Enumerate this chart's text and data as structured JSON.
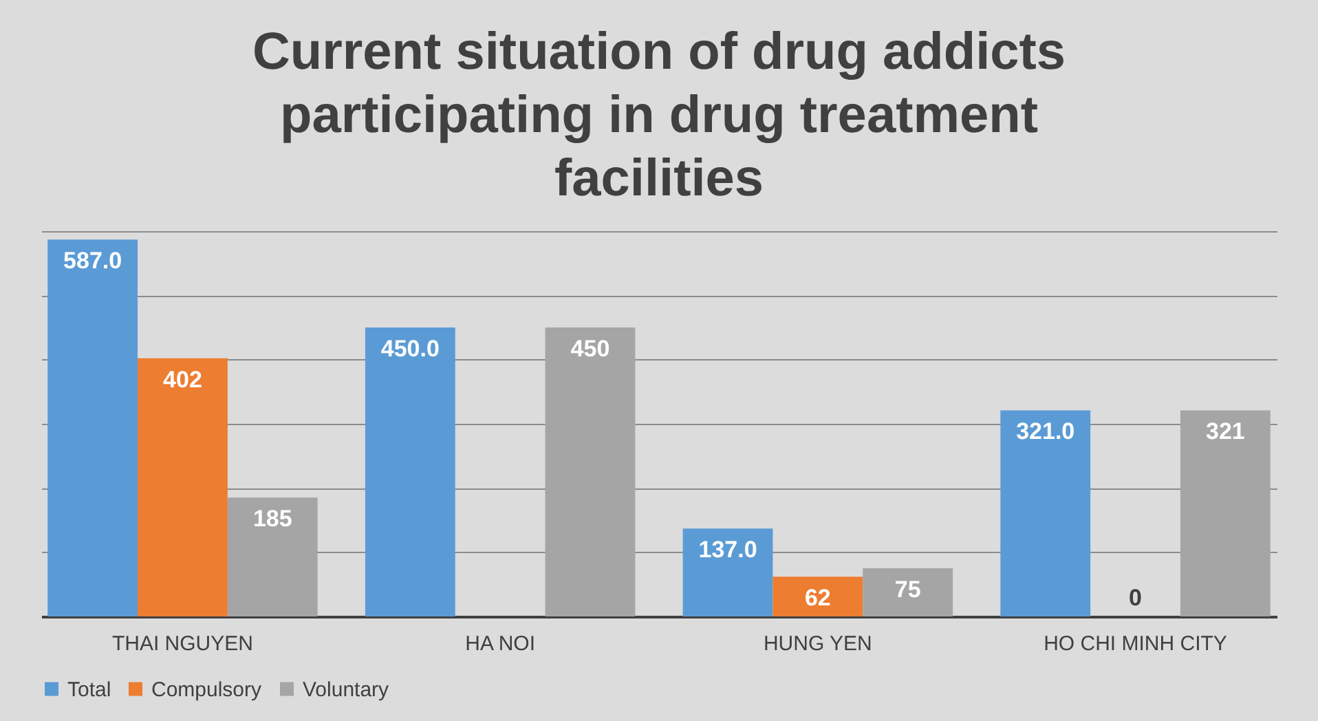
{
  "chart_data": {
    "type": "bar",
    "title": "Current situation of drug addicts participating in drug treatment facilities",
    "categories": [
      "THAI NGUYEN",
      "HA NOI",
      "HUNG YEN",
      "HO CHI MINH CITY"
    ],
    "series": [
      {
        "name": "Total",
        "color": "#5b9bd5",
        "values": [
          587,
          450,
          137,
          321
        ],
        "value_labels": [
          "587.0",
          "450.0",
          "137.0",
          "321.0"
        ]
      },
      {
        "name": "Compulsory",
        "color": "#ed7d31",
        "values": [
          402,
          0,
          62,
          0
        ],
        "value_labels": [
          "402",
          null,
          "62",
          "0"
        ]
      },
      {
        "name": "Voluntary",
        "color": "#a5a5a5",
        "values": [
          185,
          450,
          75,
          321
        ],
        "value_labels": [
          "185",
          "450",
          "75",
          "321"
        ]
      }
    ],
    "ylim": [
      0,
      600
    ],
    "yticks": [
      {
        "value": 0,
        "label": null
      },
      {
        "value": 100,
        "label": null
      },
      {
        "value": 200,
        "label": null
      },
      {
        "value": 300,
        "label": null
      },
      {
        "value": 400,
        "label": null
      },
      {
        "value": 500,
        "label": null
      },
      {
        "value": 600,
        "label": null
      }
    ],
    "grid": "y",
    "tick_labels": "x",
    "legend": "bottom"
  }
}
